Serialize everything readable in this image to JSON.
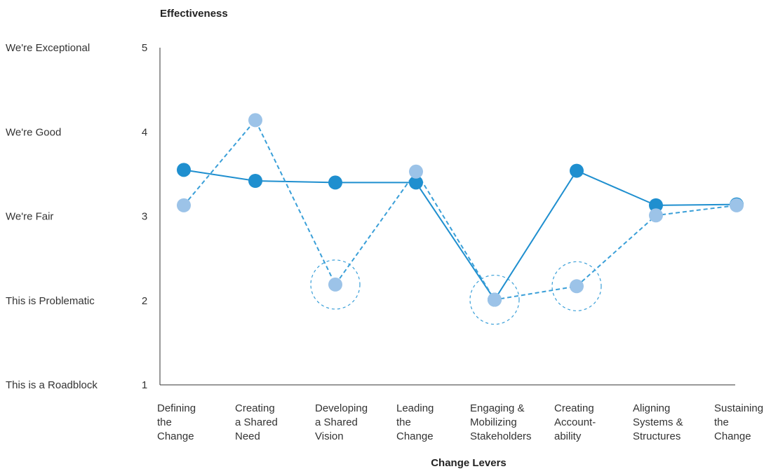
{
  "chart_data": {
    "type": "line",
    "ylabel": "Effectiveness",
    "xlabel": "Change Levers",
    "ylim": [
      1,
      5
    ],
    "y_levels": [
      {
        "value": 5,
        "tick": "5",
        "label": "We're Exceptional"
      },
      {
        "value": 4,
        "tick": "4",
        "label": "We're Good"
      },
      {
        "value": 3,
        "tick": "3",
        "label": "We're Fair"
      },
      {
        "value": 2,
        "tick": "2",
        "label": "This is Problematic"
      },
      {
        "value": 1,
        "tick": "1",
        "label": "This is a Roadblock"
      }
    ],
    "categories": [
      [
        "Defining",
        "the",
        "Change"
      ],
      [
        "Creating",
        "a Shared",
        "Need"
      ],
      [
        "Developing",
        "a Shared",
        "Vision"
      ],
      [
        "Leading",
        "the",
        "Change"
      ],
      [
        "Engaging &",
        "Mobilizing",
        "Stakeholders"
      ],
      [
        "Creating",
        "Account-",
        "ability"
      ],
      [
        "Aligning",
        "Systems &",
        "Structures"
      ],
      [
        "Sustaining",
        "the",
        "Change"
      ]
    ],
    "series": [
      {
        "style": "solid",
        "color": "#1f8fcf",
        "values": [
          3.55,
          3.42,
          3.4,
          3.4,
          2.01,
          3.54,
          3.13,
          3.14
        ]
      },
      {
        "style": "dashed",
        "color": "#9cc3e8",
        "line_color": "#3a9fd8",
        "values": [
          3.13,
          4.14,
          2.19,
          3.53,
          2.01,
          2.17,
          3.01,
          3.13
        ]
      }
    ],
    "highlighted_categories": [
      2,
      4,
      5
    ],
    "grid": false,
    "legend": "none"
  }
}
